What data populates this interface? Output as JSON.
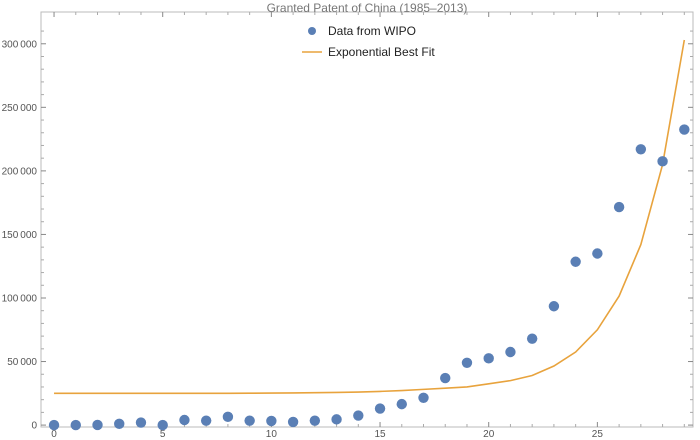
{
  "chart_data": {
    "type": "scatter",
    "title": "Granted Patent of China (1985–2013)",
    "xlabel": "",
    "ylabel": "",
    "xlim": [
      -0.6,
      29.4
    ],
    "ylim": [
      -1500,
      325000
    ],
    "x_ticks": [
      0,
      5,
      10,
      15,
      20,
      25
    ],
    "x_tick_labels": [
      "0",
      "5",
      "10",
      "15",
      "20",
      "25"
    ],
    "y_ticks": [
      0,
      50000,
      100000,
      150000,
      200000,
      250000,
      300000
    ],
    "y_tick_labels": [
      "0",
      "50 000",
      "100 000",
      "150 000",
      "200 000",
      "250 000",
      "300 000"
    ],
    "grid": false,
    "legend_position": "top-center",
    "series": [
      {
        "name": "Data from WIPO",
        "kind": "scatter",
        "color": "#5a7fb5",
        "x": [
          0,
          1,
          2,
          3,
          4,
          5,
          6,
          7,
          8,
          9,
          10,
          11,
          12,
          13,
          14,
          15,
          16,
          17,
          18,
          19,
          20,
          21,
          22,
          23,
          24,
          25,
          26,
          27,
          28,
          29
        ],
        "y": [
          0,
          0,
          100,
          1000,
          2000,
          0,
          4000,
          3500,
          6500,
          3500,
          3300,
          2500,
          3500,
          4500,
          7500,
          13000,
          16500,
          21500,
          37000,
          49000,
          52500,
          57500,
          68000,
          93500,
          128500,
          135000,
          171500,
          217000,
          207500,
          232500
        ]
      },
      {
        "name": "Exponential Best Fit",
        "kind": "line",
        "color": "#e8a33d",
        "x": [
          0,
          1,
          2,
          3,
          4,
          5,
          6,
          7,
          8,
          9,
          10,
          11,
          12,
          13,
          14,
          15,
          16,
          17,
          18,
          19,
          20,
          21,
          22,
          23,
          24,
          25,
          26,
          27,
          28,
          29
        ],
        "y": [
          25000,
          25000,
          25000,
          25000,
          25000,
          25000,
          25000,
          25000,
          25000,
          25100,
          25200,
          25300,
          25500,
          25700,
          26000,
          26500,
          27200,
          28100,
          29000,
          30000,
          32500,
          35000,
          39000,
          46500,
          57500,
          75000,
          101500,
          142000,
          205000,
          303000
        ]
      }
    ]
  }
}
